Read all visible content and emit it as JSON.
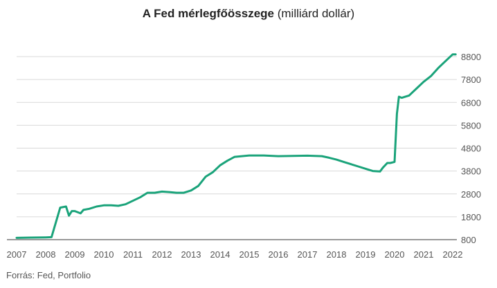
{
  "chart_data": {
    "type": "line",
    "title_bold": "A Fed mérlegfőösszege",
    "title_rest": "(milliárd dollár)",
    "source": "Forrás: Fed, Portfolio",
    "xlabel": "",
    "ylabel": "",
    "x_ticks": [
      "2007",
      "2008",
      "2009",
      "2010",
      "2011",
      "2012",
      "2013",
      "2014",
      "2015",
      "2016",
      "2017",
      "2018",
      "2019",
      "2020",
      "2021",
      "2022"
    ],
    "y_ticks": [
      800,
      1800,
      2800,
      3800,
      4800,
      5800,
      6800,
      7800,
      8800
    ],
    "xlim": [
      2007,
      2022.15
    ],
    "ylim": [
      800,
      9200
    ],
    "grid": "horizontal",
    "y_axis_position": "right",
    "colors": {
      "line": "#1aa37a",
      "grid": "#d9d9d9",
      "axis": "#333333"
    },
    "series": [
      {
        "x": [
          2007.0,
          2007.5,
          2008.0,
          2008.2,
          2008.5,
          2008.7,
          2008.8,
          2008.9,
          2009.0,
          2009.2,
          2009.3,
          2009.5,
          2009.75,
          2010.0,
          2010.25,
          2010.5,
          2010.75,
          2011.0,
          2011.25,
          2011.5,
          2011.75,
          2012.0,
          2012.25,
          2012.5,
          2012.75,
          2013.0,
          2013.25,
          2013.5,
          2013.75,
          2014.0,
          2014.25,
          2014.5,
          2014.75,
          2015.0,
          2015.5,
          2016.0,
          2016.5,
          2017.0,
          2017.5,
          2017.75,
          2018.0,
          2018.25,
          2018.5,
          2018.75,
          2019.0,
          2019.25,
          2019.5,
          2019.6,
          2019.75,
          2019.85,
          2020.0,
          2020.08,
          2020.15,
          2020.25,
          2020.5,
          2020.75,
          2021.0,
          2021.25,
          2021.5,
          2021.75,
          2022.0,
          2022.1
        ],
        "y": [
          880,
          890,
          900,
          910,
          2200,
          2250,
          1850,
          2050,
          2050,
          1950,
          2100,
          2150,
          2250,
          2300,
          2300,
          2280,
          2350,
          2500,
          2650,
          2850,
          2850,
          2900,
          2880,
          2850,
          2850,
          2950,
          3150,
          3550,
          3750,
          4050,
          4250,
          4420,
          4450,
          4480,
          4480,
          4450,
          4460,
          4470,
          4450,
          4380,
          4300,
          4200,
          4100,
          4000,
          3900,
          3800,
          3780,
          3950,
          4150,
          4150,
          4200,
          6300,
          7050,
          7000,
          7100,
          7400,
          7700,
          7950,
          8300,
          8600,
          8900,
          8900
        ]
      }
    ]
  }
}
